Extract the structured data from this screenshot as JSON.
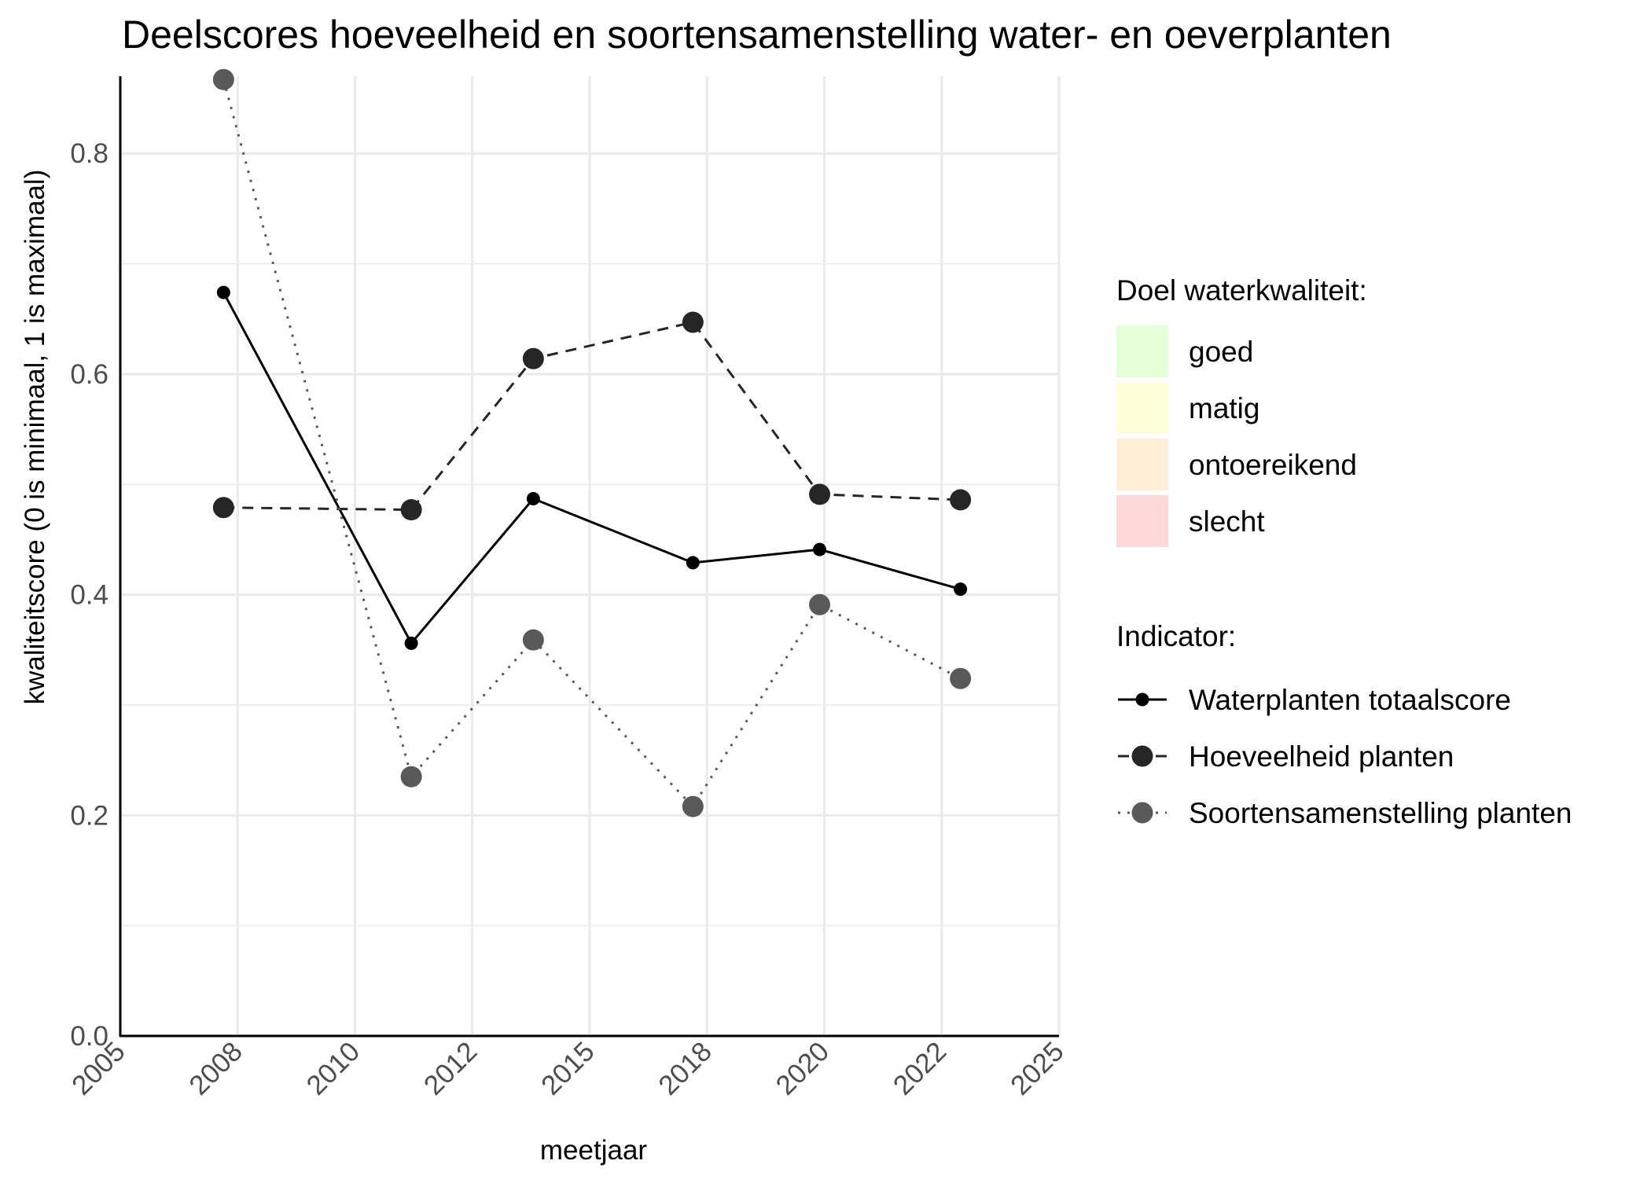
{
  "chart_data": {
    "type": "line",
    "title": "Deelscores hoeveelheid en soortensamenstelling water- en oeverplanten",
    "xlabel": "meetjaar",
    "ylabel": "kwaliteitscore (0 is minimaal, 1 is maximaal)",
    "xlim": [
      2005,
      2025
    ],
    "ylim": [
      0,
      0.87
    ],
    "x_ticks": [
      "2005",
      "2008",
      "2010",
      "2012",
      "2015",
      "2018",
      "2020",
      "2022",
      "2025"
    ],
    "y_ticks": [
      "0.0",
      "0.2",
      "0.4",
      "0.6",
      "0.8"
    ],
    "grid": true,
    "legend_position": "right",
    "series": [
      {
        "name": "Waterplanten totaalscore",
        "color": "#000000",
        "linestyle": "solid",
        "marker_size": "small",
        "x": [
          2007,
          2011,
          2014,
          2017,
          2020,
          2023
        ],
        "y": [
          0.674,
          0.356,
          0.487,
          0.429,
          0.441,
          0.405
        ]
      },
      {
        "name": "Hoeveelheid planten",
        "color": "#262626",
        "linestyle": "dashed",
        "marker_size": "large",
        "x": [
          2007,
          2011,
          2014,
          2017,
          2020,
          2023
        ],
        "y": [
          0.479,
          0.477,
          0.614,
          0.647,
          0.491,
          0.486
        ]
      },
      {
        "name": "Soortensamenstelling planten",
        "color": "#595959",
        "linestyle": "dotted",
        "marker_size": "large",
        "x": [
          2007,
          2011,
          2014,
          2017,
          2020,
          2023
        ],
        "y": [
          0.867,
          0.235,
          0.359,
          0.208,
          0.391,
          0.324
        ]
      }
    ],
    "legend_fill": {
      "title": "Doel waterkwaliteit:",
      "items": [
        {
          "label": "goed",
          "color": "#e5ffd9"
        },
        {
          "label": "matig",
          "color": "#ffffd9"
        },
        {
          "label": "ontoereikend",
          "color": "#ffefd9"
        },
        {
          "label": "slecht",
          "color": "#ffd9d9"
        }
      ]
    },
    "legend_lines": {
      "title": "Indicator:"
    }
  }
}
